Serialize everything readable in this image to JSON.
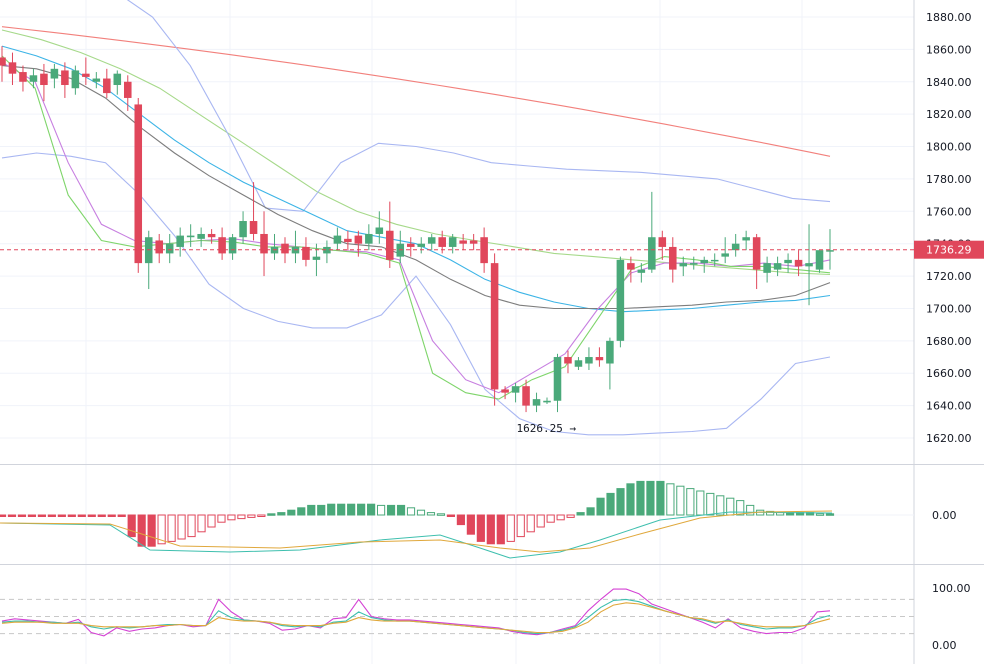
{
  "chart_data": [
    {
      "type": "candlestick",
      "panel": "price",
      "ylim": [
        1610,
        1890
      ],
      "y_ticks": [
        "1880.00",
        "1860.00",
        "1840.00",
        "1820.00",
        "1800.00",
        "1780.00",
        "1760.00",
        "1740.00",
        "1720.00",
        "1700.00",
        "1680.00",
        "1660.00",
        "1640.00",
        "1620.00"
      ],
      "last_price_label": "1736.29",
      "last_price": 1736.29,
      "low_annotation": {
        "text": "1626.25 →",
        "value": 1626.25,
        "index": 55
      },
      "candles": [
        [
          1855,
          1850,
          1862,
          1840
        ],
        [
          1852,
          1845,
          1858,
          1838
        ],
        [
          1846,
          1840,
          1850,
          1834
        ],
        [
          1840,
          1844,
          1848,
          1836
        ],
        [
          1845,
          1838,
          1851,
          1828
        ],
        [
          1842,
          1848,
          1851,
          1836
        ],
        [
          1847,
          1838,
          1852,
          1830
        ],
        [
          1836,
          1847,
          1850,
          1832
        ],
        [
          1845,
          1843,
          1855,
          1838
        ],
        [
          1840,
          1842,
          1846,
          1836
        ],
        [
          1842,
          1833,
          1848,
          1830
        ],
        [
          1838,
          1845,
          1847,
          1832
        ],
        [
          1840,
          1830,
          1844,
          1822
        ],
        [
          1826,
          1728,
          1830,
          1722
        ],
        [
          1728,
          1744,
          1748,
          1712
        ],
        [
          1742,
          1734,
          1746,
          1728
        ],
        [
          1734,
          1740,
          1746,
          1728
        ],
        [
          1738,
          1745,
          1750,
          1732
        ],
        [
          1744,
          1745,
          1752,
          1738
        ],
        [
          1743,
          1746,
          1750,
          1738
        ],
        [
          1746,
          1744,
          1749,
          1740
        ],
        [
          1744,
          1734,
          1750,
          1730
        ],
        [
          1734,
          1744,
          1746,
          1730
        ],
        [
          1744,
          1754,
          1760,
          1740
        ],
        [
          1754,
          1746,
          1778,
          1742
        ],
        [
          1746,
          1734,
          1760,
          1720
        ],
        [
          1734,
          1738,
          1746,
          1730
        ],
        [
          1740,
          1734,
          1744,
          1728
        ],
        [
          1734,
          1738,
          1748,
          1728
        ],
        [
          1738,
          1730,
          1744,
          1726
        ],
        [
          1730,
          1732,
          1740,
          1720
        ],
        [
          1734,
          1738,
          1742,
          1728
        ],
        [
          1740,
          1745,
          1750,
          1736
        ],
        [
          1743,
          1741,
          1748,
          1736
        ],
        [
          1745,
          1740,
          1748,
          1732
        ],
        [
          1740,
          1746,
          1752,
          1736
        ],
        [
          1746,
          1750,
          1760,
          1740
        ],
        [
          1748,
          1730,
          1766,
          1725
        ],
        [
          1732,
          1740,
          1748,
          1728
        ],
        [
          1740,
          1738,
          1744,
          1732
        ],
        [
          1738,
          1740,
          1744,
          1734
        ],
        [
          1740,
          1744,
          1746,
          1736
        ],
        [
          1744,
          1738,
          1748,
          1734
        ],
        [
          1738,
          1744,
          1746,
          1734
        ],
        [
          1742,
          1740,
          1746,
          1736
        ],
        [
          1742,
          1740,
          1746,
          1736
        ],
        [
          1744,
          1728,
          1750,
          1722
        ],
        [
          1728,
          1650,
          1734,
          1640
        ],
        [
          1650,
          1648,
          1652,
          1644
        ],
        [
          1648,
          1652,
          1654,
          1642
        ],
        [
          1652,
          1640,
          1656,
          1636
        ],
        [
          1640,
          1644,
          1648,
          1636
        ],
        [
          1642,
          1643,
          1645,
          1641
        ],
        [
          1643,
          1670,
          1672,
          1636
        ],
        [
          1670,
          1666,
          1674,
          1660
        ],
        [
          1664,
          1668,
          1670,
          1662
        ],
        [
          1666,
          1670,
          1676,
          1662
        ],
        [
          1670,
          1668,
          1676,
          1664
        ],
        [
          1666,
          1680,
          1682,
          1650
        ],
        [
          1680,
          1730,
          1732,
          1676
        ],
        [
          1728,
          1724,
          1732,
          1716
        ],
        [
          1722,
          1724,
          1728,
          1716
        ],
        [
          1724,
          1744,
          1772,
          1722
        ],
        [
          1744,
          1738,
          1748,
          1730
        ],
        [
          1738,
          1724,
          1744,
          1716
        ],
        [
          1726,
          1728,
          1732,
          1720
        ],
        [
          1728,
          1728,
          1732,
          1724
        ],
        [
          1728,
          1730,
          1732,
          1722
        ],
        [
          1730,
          1730,
          1734,
          1726
        ],
        [
          1732,
          1734,
          1744,
          1728
        ],
        [
          1736,
          1740,
          1746,
          1732
        ],
        [
          1742,
          1744,
          1748,
          1736
        ],
        [
          1744,
          1724,
          1746,
          1712
        ],
        [
          1722,
          1728,
          1732,
          1716
        ],
        [
          1724,
          1728,
          1732,
          1720
        ],
        [
          1728,
          1730,
          1734,
          1722
        ],
        [
          1730,
          1726,
          1736,
          1720
        ],
        [
          1726,
          1728,
          1752,
          1702
        ],
        [
          1724,
          1736,
          1736,
          1722
        ],
        [
          1736,
          1736,
          1749,
          1724
        ]
      ],
      "overlays": [
        {
          "name": "sma_long",
          "color": "#f2807c",
          "from": 1874,
          "to": 1794,
          "shape": "linear"
        },
        {
          "name": "sma_mid",
          "color": "#a6d98a",
          "values": [
            1872,
            1866,
            1858,
            1848,
            1836,
            1820,
            1804,
            1788,
            1772,
            1760,
            1752,
            1746,
            1742,
            1738,
            1734,
            1732,
            1730,
            1728,
            1726,
            1724,
            1722,
            1721
          ]
        },
        {
          "name": "bb_upper",
          "color": "#a9b7f2",
          "values": [
            1900,
            1905,
            1902,
            1896,
            1880,
            1850,
            1808,
            1762,
            1760,
            1790,
            1802,
            1800,
            1796,
            1790,
            1788,
            1786,
            1785,
            1784,
            1782,
            1780,
            1774,
            1768,
            1766
          ]
        },
        {
          "name": "bb_lower",
          "color": "#a9b7f2",
          "values": [
            1793,
            1796,
            1794,
            1790,
            1770,
            1745,
            1715,
            1700,
            1692,
            1688,
            1688,
            1696,
            1720,
            1690,
            1650,
            1632,
            1624,
            1622,
            1622,
            1623,
            1624,
            1626,
            1644,
            1666,
            1670
          ]
        },
        {
          "name": "ema_fast",
          "color": "#3cb4e6",
          "values": [
            1862,
            1856,
            1848,
            1836,
            1820,
            1804,
            1790,
            1778,
            1768,
            1758,
            1748,
            1744,
            1740,
            1730,
            1718,
            1710,
            1704,
            1700,
            1698,
            1699,
            1700,
            1702,
            1704,
            1705,
            1708
          ]
        },
        {
          "name": "ema_slow",
          "color": "#7d7d7d",
          "values": [
            1850,
            1848,
            1842,
            1830,
            1812,
            1796,
            1782,
            1770,
            1758,
            1748,
            1740,
            1738,
            1730,
            1718,
            1708,
            1702,
            1700,
            1700,
            1700,
            1701,
            1702,
            1704,
            1705,
            1708,
            1716
          ]
        },
        {
          "name": "ema_purple",
          "color": "#c77fe0",
          "values": [
            1852,
            1840,
            1790,
            1752,
            1742,
            1740,
            1742,
            1743,
            1740,
            1738,
            1736,
            1735,
            1730,
            1680,
            1656,
            1648,
            1660,
            1672,
            1700,
            1722,
            1728,
            1728,
            1726,
            1728,
            1726,
            1730
          ]
        },
        {
          "name": "ema_green_fast",
          "color": "#7fd56b",
          "values": [
            1856,
            1836,
            1770,
            1742,
            1738,
            1740,
            1742,
            1741,
            1738,
            1738,
            1736,
            1734,
            1728,
            1660,
            1648,
            1644,
            1656,
            1664,
            1694,
            1724,
            1732,
            1730,
            1726,
            1726,
            1724,
            1722
          ]
        }
      ]
    },
    {
      "type": "histogram",
      "panel": "macd",
      "y_ticks": [
        "0.00"
      ],
      "zero_label": "0.00",
      "values": [
        -1,
        -1,
        -1,
        -1,
        -1,
        -1,
        -1,
        -1,
        -1,
        -1,
        -1,
        -1,
        -1,
        -18,
        -26,
        -26,
        -24,
        -22,
        -20,
        -18,
        -14,
        -10,
        -6,
        -4,
        -3,
        -2,
        -1,
        1,
        2,
        4,
        6,
        8,
        8,
        9,
        9,
        9,
        9,
        9,
        8,
        8,
        8,
        6,
        4,
        2,
        1,
        -1,
        -8,
        -16,
        -22,
        -24,
        -24,
        -22,
        -18,
        -14,
        -10,
        -6,
        -4,
        -2,
        2,
        6,
        14,
        18,
        22,
        26,
        28,
        28,
        28,
        26,
        24,
        22,
        20,
        18,
        16,
        14,
        12,
        8,
        4,
        3,
        2,
        2,
        2,
        2,
        1,
        1
      ]
    },
    {
      "type": "line",
      "panel": "oscillator",
      "y_ticks": [
        "100.00",
        "0.00"
      ],
      "ylim": [
        0,
        100
      ],
      "series": [
        {
          "color": "#d442d4",
          "values": [
            42,
            46,
            44,
            42,
            40,
            38,
            45,
            22,
            16,
            30,
            24,
            28,
            30,
            34,
            36,
            32,
            34,
            80,
            58,
            44,
            42,
            38,
            26,
            28,
            34,
            30,
            46,
            48,
            80,
            50,
            46,
            44,
            44,
            42,
            40,
            38,
            36,
            34,
            32,
            30,
            24,
            20,
            18,
            22,
            28,
            34,
            60,
            80,
            98,
            98,
            90,
            72,
            64,
            56,
            48,
            40,
            30,
            46,
            30,
            24,
            20,
            22,
            22,
            30,
            58,
            60
          ]
        },
        {
          "color": "#3ebfae",
          "values": [
            40,
            42,
            42,
            40,
            40,
            38,
            40,
            32,
            28,
            32,
            30,
            32,
            34,
            36,
            36,
            34,
            34,
            60,
            48,
            44,
            42,
            40,
            34,
            32,
            34,
            32,
            40,
            42,
            58,
            48,
            44,
            42,
            42,
            40,
            38,
            36,
            34,
            32,
            30,
            28,
            26,
            22,
            20,
            22,
            26,
            32,
            48,
            66,
            78,
            80,
            76,
            68,
            60,
            54,
            48,
            44,
            38,
            44,
            36,
            32,
            28,
            30,
            30,
            34,
            46,
            52
          ]
        },
        {
          "color": "#e0a83c",
          "values": [
            38,
            40,
            40,
            40,
            38,
            38,
            38,
            34,
            32,
            32,
            32,
            32,
            34,
            34,
            36,
            34,
            34,
            48,
            44,
            42,
            42,
            40,
            36,
            34,
            34,
            34,
            38,
            40,
            48,
            44,
            42,
            42,
            42,
            40,
            38,
            36,
            34,
            32,
            30,
            28,
            26,
            24,
            22,
            22,
            24,
            30,
            40,
            58,
            70,
            74,
            72,
            66,
            60,
            54,
            48,
            46,
            40,
            42,
            38,
            34,
            32,
            32,
            32,
            34,
            40,
            46
          ]
        }
      ]
    }
  ]
}
